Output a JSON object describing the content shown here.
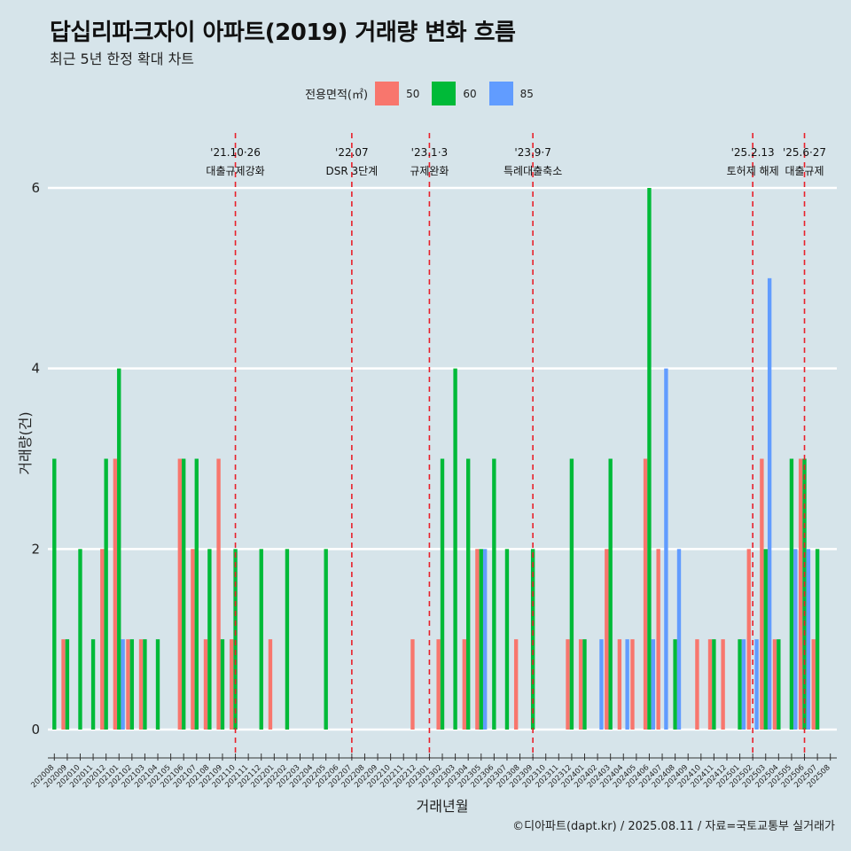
{
  "title": "답십리파크자이 아파트(2019) 거래량 변화 흐름",
  "subtitle": "최근 5년 한정 확대 차트",
  "caption": "©디아파트(dapt.kr) / 2025.08.11 / 자료=국토교통부 실거래가",
  "legend": {
    "title": "전용면적(㎡)",
    "items": [
      {
        "label": "50",
        "color": "#f8766d"
      },
      {
        "label": "60",
        "color": "#00ba38"
      },
      {
        "label": "85",
        "color": "#619cff"
      }
    ]
  },
  "chart_data": {
    "type": "bar",
    "xlabel": "거래년월",
    "ylabel": "거래량(건)",
    "ylim": [
      0,
      6
    ],
    "yticks": [
      0,
      2,
      4,
      6
    ],
    "grid": true,
    "legend_position": "top",
    "categories": [
      "202008",
      "202009",
      "202010",
      "202011",
      "202012",
      "202101",
      "202102",
      "202103",
      "202104",
      "202105",
      "202106",
      "202107",
      "202108",
      "202109",
      "202110",
      "202111",
      "202112",
      "202201",
      "202202",
      "202203",
      "202204",
      "202205",
      "202206",
      "202207",
      "202208",
      "202209",
      "202210",
      "202211",
      "202212",
      "202301",
      "202302",
      "202303",
      "202304",
      "202305",
      "202306",
      "202307",
      "202308",
      "202309",
      "202310",
      "202311",
      "202312",
      "202401",
      "202402",
      "202403",
      "202404",
      "202405",
      "202406",
      "202407",
      "202408",
      "202409",
      "202410",
      "202411",
      "202412",
      "202501",
      "202502",
      "202503",
      "202504",
      "202505",
      "202506",
      "202507",
      "202508"
    ],
    "series": [
      {
        "name": "50",
        "color": "#f8766d",
        "values": [
          0,
          1,
          0,
          0,
          2,
          3,
          1,
          1,
          0,
          0,
          3,
          2,
          1,
          3,
          1,
          0,
          0,
          1,
          0,
          0,
          0,
          0,
          0,
          0,
          0,
          0,
          0,
          0,
          1,
          0,
          1,
          0,
          1,
          2,
          0,
          0,
          1,
          0,
          0,
          0,
          1,
          1,
          0,
          2,
          1,
          1,
          3,
          2,
          0,
          0,
          1,
          1,
          1,
          0,
          2,
          3,
          1,
          0,
          3,
          1,
          0
        ]
      },
      {
        "name": "60",
        "color": "#00ba38",
        "values": [
          3,
          1,
          2,
          1,
          3,
          4,
          1,
          1,
          1,
          0,
          3,
          3,
          2,
          1,
          2,
          0,
          2,
          0,
          2,
          0,
          0,
          2,
          0,
          0,
          0,
          0,
          0,
          0,
          0,
          0,
          3,
          4,
          3,
          2,
          3,
          2,
          0,
          2,
          0,
          0,
          3,
          1,
          0,
          3,
          0,
          0,
          6,
          0,
          1,
          0,
          0,
          1,
          0,
          1,
          0,
          2,
          1,
          3,
          3,
          2,
          0
        ]
      },
      {
        "name": "85",
        "color": "#619cff",
        "values": [
          0,
          0,
          0,
          0,
          0,
          1,
          0,
          0,
          0,
          0,
          0,
          0,
          0,
          0,
          0,
          0,
          0,
          0,
          0,
          0,
          0,
          0,
          0,
          0,
          0,
          0,
          0,
          0,
          0,
          0,
          0,
          0,
          0,
          2,
          0,
          0,
          0,
          0,
          0,
          0,
          0,
          0,
          1,
          0,
          1,
          0,
          1,
          4,
          2,
          0,
          0,
          0,
          0,
          1,
          1,
          5,
          0,
          2,
          2,
          0,
          0
        ]
      }
    ],
    "events": [
      {
        "category": "202110",
        "line1": "'21.10·26",
        "line2": "대출규제강화"
      },
      {
        "category": "202207",
        "line1": "'22.07",
        "line2": "DSR 3단계"
      },
      {
        "category": "202301",
        "line1": "'23.1·3",
        "line2": "규제완화"
      },
      {
        "category": "202309",
        "line1": "'23.9·7",
        "line2": "특례대출축소"
      },
      {
        "category": "202502",
        "line1": "'25.2.13",
        "line2": "토허제 해제"
      },
      {
        "category": "202506",
        "line1": "'25.6·27",
        "line2": "대출규제"
      }
    ]
  }
}
